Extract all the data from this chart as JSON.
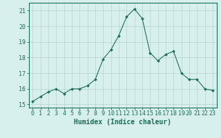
{
  "x": [
    0,
    1,
    2,
    3,
    4,
    5,
    6,
    7,
    8,
    9,
    10,
    11,
    12,
    13,
    14,
    15,
    16,
    17,
    18,
    19,
    20,
    21,
    22,
    23
  ],
  "y": [
    15.2,
    15.5,
    15.8,
    16.0,
    15.7,
    16.0,
    16.0,
    16.2,
    16.6,
    17.9,
    18.5,
    19.4,
    20.6,
    21.1,
    20.5,
    18.3,
    17.8,
    18.2,
    18.4,
    17.0,
    16.6,
    16.6,
    16.0,
    15.9
  ],
  "line_color": "#1a6b5a",
  "marker": "D",
  "marker_size": 2.0,
  "bg_color": "#d8f0ed",
  "grid_color": "#b8d8d4",
  "tick_color": "#1a6b5a",
  "xlabel": "Humidex (Indice chaleur)",
  "ylabel_ticks": [
    15,
    16,
    17,
    18,
    19,
    20,
    21
  ],
  "xlim": [
    -0.5,
    23.5
  ],
  "ylim": [
    14.8,
    21.5
  ],
  "xlabel_fontsize": 7,
  "tick_fontsize": 6,
  "title": ""
}
